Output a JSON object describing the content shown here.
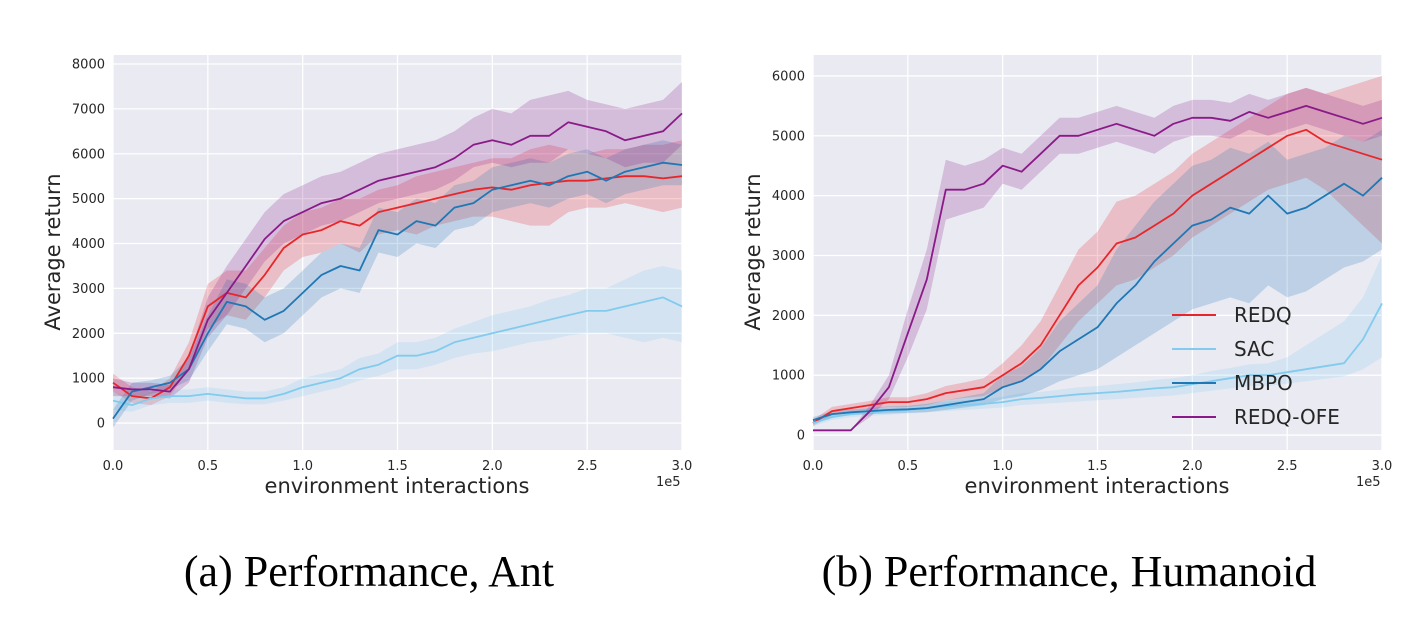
{
  "chart_data": [
    {
      "type": "line",
      "caption": "(a) Performance, Ant",
      "xlabel": "environment interactions",
      "ylabel": "Average return",
      "x_offset_label": "1e5",
      "xlim": [
        0,
        3.0
      ],
      "ylim": [
        -600,
        8200
      ],
      "xticks": [
        0,
        0.5,
        1.0,
        1.5,
        2.0,
        2.5,
        3.0
      ],
      "xtick_labels": [
        "0.0",
        "0.5",
        "1.0",
        "1.5",
        "2.0",
        "2.5",
        "3.0"
      ],
      "yticks": [
        0,
        1000,
        2000,
        3000,
        4000,
        5000,
        6000,
        7000,
        8000
      ],
      "ytick_labels": [
        "0",
        "1000",
        "2000",
        "3000",
        "4000",
        "5000",
        "6000",
        "7000",
        "8000"
      ],
      "grid": true,
      "legend": "none",
      "x": [
        0,
        0.1,
        0.2,
        0.3,
        0.4,
        0.5,
        0.6,
        0.7,
        0.8,
        0.9,
        1.0,
        1.1,
        1.2,
        1.3,
        1.4,
        1.5,
        1.6,
        1.7,
        1.8,
        1.9,
        2.0,
        2.1,
        2.2,
        2.3,
        2.4,
        2.5,
        2.6,
        2.7,
        2.8,
        2.9,
        3.0
      ],
      "series": [
        {
          "name": "REDQ",
          "color": "#e8262a",
          "values": [
            900,
            600,
            550,
            800,
            1500,
            2600,
            2900,
            2800,
            3300,
            3900,
            4200,
            4300,
            4500,
            4400,
            4700,
            4800,
            4900,
            5000,
            5100,
            5200,
            5250,
            5200,
            5300,
            5350,
            5400,
            5400,
            5450,
            5500,
            5500,
            5450,
            5500
          ],
          "lower": [
            700,
            450,
            400,
            600,
            1200,
            2100,
            2400,
            2300,
            2800,
            3400,
            3700,
            3800,
            4000,
            3800,
            4200,
            4300,
            4200,
            4400,
            4500,
            4600,
            4600,
            4500,
            4400,
            4400,
            4700,
            4800,
            4800,
            4900,
            4800,
            4700,
            4800
          ],
          "upper": [
            1100,
            800,
            700,
            1000,
            1800,
            3100,
            3400,
            3400,
            3900,
            4400,
            4700,
            4800,
            5000,
            5000,
            5200,
            5300,
            5500,
            5600,
            5700,
            5800,
            5900,
            5900,
            6100,
            6200,
            6100,
            6000,
            6100,
            6100,
            6200,
            6200,
            6300
          ]
        },
        {
          "name": "SAC",
          "color": "#82cbee",
          "values": [
            500,
            400,
            550,
            600,
            600,
            650,
            600,
            550,
            550,
            650,
            800,
            900,
            1000,
            1200,
            1300,
            1500,
            1500,
            1600,
            1800,
            1900,
            2000,
            2100,
            2200,
            2300,
            2400,
            2500,
            2500,
            2600,
            2700,
            2800,
            2600
          ],
          "lower": [
            300,
            250,
            400,
            450,
            450,
            500,
            450,
            420,
            420,
            500,
            600,
            700,
            800,
            950,
            1050,
            1200,
            1200,
            1300,
            1450,
            1550,
            1600,
            1700,
            1800,
            1850,
            1950,
            2000,
            2000,
            1900,
            1800,
            1900,
            1800
          ],
          "upper": [
            700,
            550,
            700,
            750,
            750,
            800,
            750,
            700,
            700,
            800,
            1000,
            1100,
            1200,
            1450,
            1550,
            1800,
            1800,
            1900,
            2100,
            2250,
            2400,
            2500,
            2600,
            2750,
            2850,
            3000,
            3000,
            3200,
            3400,
            3500,
            3400
          ]
        },
        {
          "name": "MBPO",
          "color": "#1f77b4",
          "values": [
            100,
            700,
            800,
            900,
            1200,
            2000,
            2700,
            2600,
            2300,
            2500,
            2900,
            3300,
            3500,
            3400,
            4300,
            4200,
            4500,
            4400,
            4800,
            4900,
            5200,
            5300,
            5400,
            5300,
            5500,
            5600,
            5400,
            5600,
            5700,
            5800,
            5750
          ],
          "lower": [
            -100,
            500,
            650,
            750,
            950,
            1600,
            2200,
            2100,
            1800,
            2000,
            2400,
            2800,
            3000,
            2900,
            3800,
            3700,
            4000,
            3900,
            4300,
            4400,
            4700,
            4800,
            4900,
            4800,
            5000,
            5100,
            4900,
            5100,
            5200,
            5300,
            5300
          ],
          "upper": [
            300,
            900,
            950,
            1050,
            1450,
            2400,
            3200,
            3100,
            2800,
            3000,
            3400,
            3800,
            4000,
            3900,
            4800,
            4700,
            5000,
            4900,
            5300,
            5400,
            5700,
            5800,
            5900,
            5800,
            6000,
            6100,
            5900,
            6100,
            6200,
            6300,
            6200
          ]
        },
        {
          "name": "REDQ-OFE",
          "color": "#8a1a88",
          "values": [
            800,
            750,
            750,
            700,
            1200,
            2300,
            2900,
            3500,
            4100,
            4500,
            4700,
            4900,
            5000,
            5200,
            5400,
            5500,
            5600,
            5700,
            5900,
            6200,
            6300,
            6200,
            6400,
            6400,
            6700,
            6600,
            6500,
            6300,
            6400,
            6500,
            6900
          ],
          "lower": [
            600,
            600,
            600,
            550,
            900,
            1900,
            2400,
            3000,
            3600,
            4000,
            4200,
            4400,
            4500,
            4700,
            4900,
            5000,
            5100,
            5200,
            5400,
            5700,
            5800,
            5700,
            5800,
            5800,
            6100,
            6000,
            5900,
            5700,
            5800,
            5800,
            6200
          ],
          "upper": [
            1000,
            900,
            900,
            850,
            1500,
            2800,
            3500,
            4100,
            4700,
            5100,
            5300,
            5500,
            5600,
            5800,
            6000,
            6100,
            6200,
            6300,
            6500,
            6800,
            7000,
            6900,
            7200,
            7300,
            7400,
            7200,
            7100,
            7000,
            7100,
            7200,
            7600
          ]
        }
      ]
    },
    {
      "type": "line",
      "caption": "(b) Performance, Humanoid",
      "xlabel": "environment interactions",
      "ylabel": "Average return",
      "x_offset_label": "1e5",
      "xlim": [
        0,
        3.0
      ],
      "ylim": [
        -250,
        6350
      ],
      "xticks": [
        0,
        0.5,
        1.0,
        1.5,
        2.0,
        2.5,
        3.0
      ],
      "xtick_labels": [
        "0.0",
        "0.5",
        "1.0",
        "1.5",
        "2.0",
        "2.5",
        "3.0"
      ],
      "yticks": [
        0,
        1000,
        2000,
        3000,
        4000,
        5000,
        6000
      ],
      "ytick_labels": [
        "0",
        "1000",
        "2000",
        "3000",
        "4000",
        "5000",
        "6000"
      ],
      "grid": true,
      "legend": "lower-right",
      "x": [
        0,
        0.1,
        0.2,
        0.3,
        0.4,
        0.5,
        0.6,
        0.7,
        0.8,
        0.9,
        1.0,
        1.1,
        1.2,
        1.3,
        1.4,
        1.5,
        1.6,
        1.7,
        1.8,
        1.9,
        2.0,
        2.1,
        2.2,
        2.3,
        2.4,
        2.5,
        2.6,
        2.7,
        2.8,
        2.9,
        3.0
      ],
      "series": [
        {
          "name": "REDQ",
          "color": "#e8262a",
          "values": [
            200,
            400,
            450,
            500,
            550,
            550,
            600,
            700,
            750,
            800,
            1000,
            1200,
            1500,
            2000,
            2500,
            2800,
            3200,
            3300,
            3500,
            3700,
            4000,
            4200,
            4400,
            4600,
            4800,
            5000,
            5100,
            4900,
            4800,
            4700,
            4600
          ],
          "lower": [
            150,
            330,
            380,
            430,
            470,
            470,
            500,
            580,
            620,
            650,
            800,
            900,
            1100,
            1500,
            1900,
            2200,
            2500,
            2600,
            2800,
            3000,
            3300,
            3500,
            3700,
            3900,
            4100,
            4200,
            4300,
            4100,
            3800,
            3500,
            3200
          ],
          "upper": [
            250,
            470,
            520,
            570,
            630,
            630,
            700,
            820,
            880,
            950,
            1200,
            1500,
            1900,
            2500,
            3100,
            3400,
            3900,
            4000,
            4200,
            4400,
            4700,
            4900,
            5100,
            5300,
            5500,
            5700,
            5800,
            5700,
            5800,
            5900,
            6000
          ]
        },
        {
          "name": "SAC",
          "color": "#82cbee",
          "values": [
            200,
            300,
            350,
            380,
            400,
            420,
            450,
            480,
            500,
            520,
            550,
            600,
            620,
            650,
            680,
            700,
            720,
            750,
            780,
            800,
            850,
            900,
            950,
            1000,
            1000,
            1050,
            1100,
            1150,
            1200,
            1600,
            2200
          ],
          "lower": [
            150,
            250,
            300,
            320,
            340,
            360,
            380,
            400,
            420,
            440,
            460,
            500,
            520,
            540,
            560,
            580,
            600,
            620,
            640,
            660,
            700,
            740,
            780,
            820,
            820,
            860,
            900,
            940,
            980,
            1100,
            1300
          ],
          "upper": [
            250,
            350,
            400,
            440,
            460,
            480,
            520,
            560,
            580,
            600,
            640,
            700,
            720,
            760,
            800,
            820,
            850,
            880,
            920,
            950,
            1000,
            1070,
            1120,
            1180,
            1200,
            1300,
            1500,
            1700,
            1900,
            2300,
            3000
          ]
        },
        {
          "name": "MBPO",
          "color": "#1f77b4",
          "values": [
            250,
            350,
            380,
            400,
            420,
            430,
            450,
            500,
            550,
            600,
            800,
            900,
            1100,
            1400,
            1600,
            1800,
            2200,
            2500,
            2900,
            3200,
            3500,
            3600,
            3800,
            3700,
            4000,
            3700,
            3800,
            4000,
            4200,
            4000,
            4300
          ],
          "lower": [
            200,
            300,
            330,
            350,
            360,
            370,
            380,
            420,
            460,
            500,
            600,
            650,
            750,
            900,
            1000,
            1100,
            1300,
            1500,
            1700,
            1900,
            2100,
            2200,
            2300,
            2200,
            2500,
            2300,
            2400,
            2600,
            2800,
            2900,
            3100
          ],
          "upper": [
            300,
            400,
            430,
            450,
            480,
            490,
            520,
            580,
            640,
            700,
            1000,
            1150,
            1450,
            1900,
            2200,
            2500,
            3100,
            3500,
            3900,
            4200,
            4500,
            4600,
            4800,
            4700,
            4900,
            4600,
            4700,
            4800,
            5000,
            4900,
            5100
          ]
        },
        {
          "name": "REDQ-OFE",
          "color": "#8a1a88",
          "values": [
            80,
            80,
            80,
            400,
            800,
            1700,
            2600,
            4100,
            4100,
            4200,
            4500,
            4400,
            4700,
            5000,
            5000,
            5100,
            5200,
            5100,
            5000,
            5200,
            5300,
            5300,
            5250,
            5400,
            5300,
            5400,
            5500,
            5400,
            5300,
            5200,
            5300
          ],
          "lower": [
            80,
            80,
            80,
            300,
            600,
            1300,
            2100,
            3600,
            3700,
            3800,
            4200,
            4100,
            4400,
            4700,
            4700,
            4800,
            4900,
            4800,
            4700,
            4900,
            5000,
            5000,
            4950,
            5100,
            5000,
            5100,
            5200,
            5100,
            5000,
            4900,
            5000
          ],
          "upper": [
            80,
            80,
            80,
            500,
            1000,
            2100,
            3100,
            4600,
            4500,
            4600,
            4800,
            4700,
            5000,
            5300,
            5300,
            5400,
            5500,
            5400,
            5300,
            5500,
            5600,
            5600,
            5550,
            5700,
            5600,
            5700,
            5800,
            5700,
            5600,
            5500,
            5600
          ]
        }
      ]
    }
  ]
}
